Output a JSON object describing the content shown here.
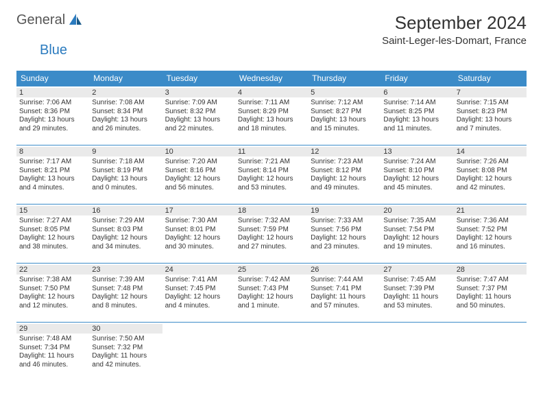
{
  "logo": {
    "main": "General",
    "accent": "Blue"
  },
  "title": "September 2024",
  "location": "Saint-Leger-les-Domart, France",
  "colors": {
    "header_bg": "#3b8bc8",
    "header_text": "#ffffff",
    "daynum_bg": "#eaeaea",
    "border": "#3b8bc8",
    "logo_accent": "#2b7bbf"
  },
  "day_headers": [
    "Sunday",
    "Monday",
    "Tuesday",
    "Wednesday",
    "Thursday",
    "Friday",
    "Saturday"
  ],
  "start_day_index": 0,
  "days": [
    {
      "n": 1,
      "sunrise": "7:06 AM",
      "sunset": "8:36 PM",
      "daylight": "13 hours and 29 minutes."
    },
    {
      "n": 2,
      "sunrise": "7:08 AM",
      "sunset": "8:34 PM",
      "daylight": "13 hours and 26 minutes."
    },
    {
      "n": 3,
      "sunrise": "7:09 AM",
      "sunset": "8:32 PM",
      "daylight": "13 hours and 22 minutes."
    },
    {
      "n": 4,
      "sunrise": "7:11 AM",
      "sunset": "8:29 PM",
      "daylight": "13 hours and 18 minutes."
    },
    {
      "n": 5,
      "sunrise": "7:12 AM",
      "sunset": "8:27 PM",
      "daylight": "13 hours and 15 minutes."
    },
    {
      "n": 6,
      "sunrise": "7:14 AM",
      "sunset": "8:25 PM",
      "daylight": "13 hours and 11 minutes."
    },
    {
      "n": 7,
      "sunrise": "7:15 AM",
      "sunset": "8:23 PM",
      "daylight": "13 hours and 7 minutes."
    },
    {
      "n": 8,
      "sunrise": "7:17 AM",
      "sunset": "8:21 PM",
      "daylight": "13 hours and 4 minutes."
    },
    {
      "n": 9,
      "sunrise": "7:18 AM",
      "sunset": "8:19 PM",
      "daylight": "13 hours and 0 minutes."
    },
    {
      "n": 10,
      "sunrise": "7:20 AM",
      "sunset": "8:16 PM",
      "daylight": "12 hours and 56 minutes."
    },
    {
      "n": 11,
      "sunrise": "7:21 AM",
      "sunset": "8:14 PM",
      "daylight": "12 hours and 53 minutes."
    },
    {
      "n": 12,
      "sunrise": "7:23 AM",
      "sunset": "8:12 PM",
      "daylight": "12 hours and 49 minutes."
    },
    {
      "n": 13,
      "sunrise": "7:24 AM",
      "sunset": "8:10 PM",
      "daylight": "12 hours and 45 minutes."
    },
    {
      "n": 14,
      "sunrise": "7:26 AM",
      "sunset": "8:08 PM",
      "daylight": "12 hours and 42 minutes."
    },
    {
      "n": 15,
      "sunrise": "7:27 AM",
      "sunset": "8:05 PM",
      "daylight": "12 hours and 38 minutes."
    },
    {
      "n": 16,
      "sunrise": "7:29 AM",
      "sunset": "8:03 PM",
      "daylight": "12 hours and 34 minutes."
    },
    {
      "n": 17,
      "sunrise": "7:30 AM",
      "sunset": "8:01 PM",
      "daylight": "12 hours and 30 minutes."
    },
    {
      "n": 18,
      "sunrise": "7:32 AM",
      "sunset": "7:59 PM",
      "daylight": "12 hours and 27 minutes."
    },
    {
      "n": 19,
      "sunrise": "7:33 AM",
      "sunset": "7:56 PM",
      "daylight": "12 hours and 23 minutes."
    },
    {
      "n": 20,
      "sunrise": "7:35 AM",
      "sunset": "7:54 PM",
      "daylight": "12 hours and 19 minutes."
    },
    {
      "n": 21,
      "sunrise": "7:36 AM",
      "sunset": "7:52 PM",
      "daylight": "12 hours and 16 minutes."
    },
    {
      "n": 22,
      "sunrise": "7:38 AM",
      "sunset": "7:50 PM",
      "daylight": "12 hours and 12 minutes."
    },
    {
      "n": 23,
      "sunrise": "7:39 AM",
      "sunset": "7:48 PM",
      "daylight": "12 hours and 8 minutes."
    },
    {
      "n": 24,
      "sunrise": "7:41 AM",
      "sunset": "7:45 PM",
      "daylight": "12 hours and 4 minutes."
    },
    {
      "n": 25,
      "sunrise": "7:42 AM",
      "sunset": "7:43 PM",
      "daylight": "12 hours and 1 minute."
    },
    {
      "n": 26,
      "sunrise": "7:44 AM",
      "sunset": "7:41 PM",
      "daylight": "11 hours and 57 minutes."
    },
    {
      "n": 27,
      "sunrise": "7:45 AM",
      "sunset": "7:39 PM",
      "daylight": "11 hours and 53 minutes."
    },
    {
      "n": 28,
      "sunrise": "7:47 AM",
      "sunset": "7:37 PM",
      "daylight": "11 hours and 50 minutes."
    },
    {
      "n": 29,
      "sunrise": "7:48 AM",
      "sunset": "7:34 PM",
      "daylight": "11 hours and 46 minutes."
    },
    {
      "n": 30,
      "sunrise": "7:50 AM",
      "sunset": "7:32 PM",
      "daylight": "11 hours and 42 minutes."
    }
  ],
  "labels": {
    "sunrise": "Sunrise:",
    "sunset": "Sunset:",
    "daylight": "Daylight:"
  }
}
